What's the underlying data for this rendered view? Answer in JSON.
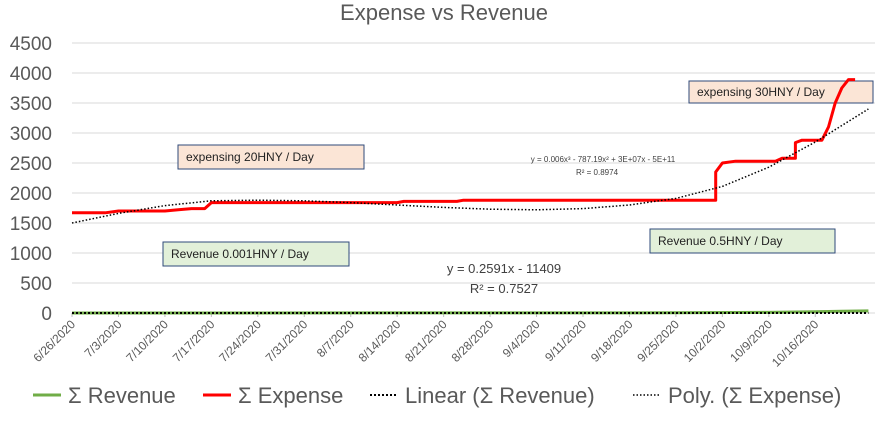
{
  "chart_data": {
    "type": "line",
    "title": "Expense vs Revenue",
    "xlabel": "",
    "ylabel": "",
    "ylim": [
      0,
      4500
    ],
    "y_ticks": [
      0,
      500,
      1000,
      1500,
      2000,
      2500,
      3000,
      3500,
      4000,
      4500
    ],
    "x_ticks": [
      "6/26/2020",
      "7/3/2020",
      "7/10/2020",
      "7/17/2020",
      "7/24/2020",
      "7/31/2020",
      "8/7/2020",
      "8/14/2020",
      "8/21/2020",
      "8/28/2020",
      "9/4/2020",
      "9/11/2020",
      "9/18/2020",
      "9/25/2020",
      "10/2/2020",
      "10/9/2020",
      "10/16/2020"
    ],
    "grid": true,
    "legend_position": "bottom",
    "series": [
      {
        "name": "Σ Revenue",
        "color": "#70ad47",
        "style": "solid",
        "points": [
          [
            "6/26/2020",
            0
          ],
          [
            "9/25/2020",
            3
          ],
          [
            "10/9/2020",
            10
          ],
          [
            "10/16/2020",
            20
          ],
          [
            "10/20/2020",
            30
          ],
          [
            "10/24/2020",
            35
          ]
        ]
      },
      {
        "name": "Σ Expense",
        "color": "#ff0000",
        "style": "solid",
        "points": [
          [
            "6/26/2020",
            1670
          ],
          [
            "7/1/2020",
            1670
          ],
          [
            "7/3/2020",
            1700
          ],
          [
            "7/10/2020",
            1700
          ],
          [
            "7/12/2020",
            1720
          ],
          [
            "7/14/2020",
            1740
          ],
          [
            "7/16/2020",
            1740
          ],
          [
            "7/17/2020",
            1840
          ],
          [
            "8/14/2020",
            1840
          ],
          [
            "8/15/2020",
            1860
          ],
          [
            "8/23/2020",
            1860
          ],
          [
            "8/24/2020",
            1880
          ],
          [
            "10/1/2020",
            1880
          ],
          [
            "10/1/2020",
            2350
          ],
          [
            "10/2/2020",
            2500
          ],
          [
            "10/4/2020",
            2530
          ],
          [
            "10/10/2020",
            2530
          ],
          [
            "10/11/2020",
            2580
          ],
          [
            "10/13/2020",
            2580
          ],
          [
            "10/13/2020",
            2840
          ],
          [
            "10/14/2020",
            2880
          ],
          [
            "10/17/2020",
            2880
          ],
          [
            "10/18/2020",
            3100
          ],
          [
            "10/19/2020",
            3500
          ],
          [
            "10/20/2020",
            3750
          ],
          [
            "10/21/2020",
            3890
          ],
          [
            "10/22/2020",
            3890
          ]
        ]
      },
      {
        "name": "Linear (Σ Revenue)",
        "color": "#000000",
        "style": "dotted",
        "points": [
          [
            "6/26/2020",
            0
          ],
          [
            "10/24/2020",
            0
          ]
        ]
      },
      {
        "name": "Poly. (Σ Expense)",
        "color": "#000000",
        "style": "dotted-fine",
        "points": [
          [
            "6/26/2020",
            1500
          ],
          [
            "7/3/2020",
            1660
          ],
          [
            "7/10/2020",
            1790
          ],
          [
            "7/17/2020",
            1870
          ],
          [
            "7/24/2020",
            1880
          ],
          [
            "7/31/2020",
            1870
          ],
          [
            "8/7/2020",
            1840
          ],
          [
            "8/14/2020",
            1800
          ],
          [
            "8/21/2020",
            1760
          ],
          [
            "8/28/2020",
            1730
          ],
          [
            "9/4/2020",
            1720
          ],
          [
            "9/11/2020",
            1740
          ],
          [
            "9/18/2020",
            1800
          ],
          [
            "9/25/2020",
            1910
          ],
          [
            "10/2/2020",
            2110
          ],
          [
            "10/9/2020",
            2430
          ],
          [
            "10/16/2020",
            2850
          ],
          [
            "10/24/2020",
            3400
          ]
        ]
      }
    ],
    "annotations": [
      {
        "text": "expensing 20HNY / Day",
        "fill": "#fbe5d6"
      },
      {
        "text": "Revenue 0.001HNY / Day",
        "fill": "#e2f0d9"
      },
      {
        "text": "Revenue 0.5HNY / Day",
        "fill": "#e2f0d9"
      },
      {
        "text": "expensing 30HNY / Day",
        "fill": "#fbe5d6"
      }
    ],
    "linear_equation": [
      "y = 0.2591x - 11409",
      "R² = 0.7527"
    ],
    "poly_equation": [
      "y = 0.006x³ - 787.19x² + 3E+07x - 5E+11",
      "R² = 0.8974"
    ]
  }
}
